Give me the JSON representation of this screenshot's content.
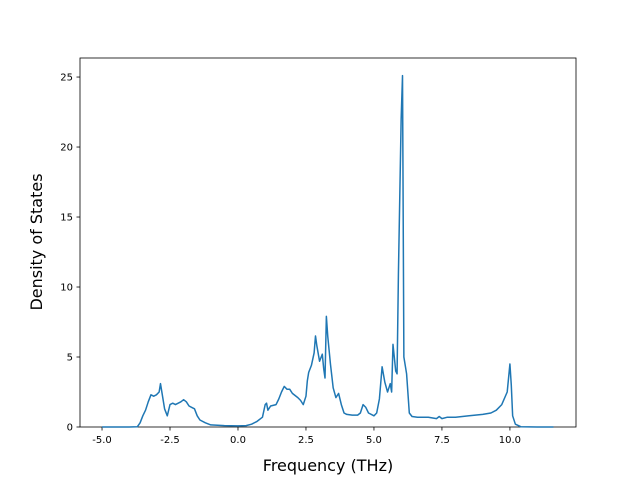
{
  "chart_data": {
    "type": "line",
    "xlabel": "Frequency (THz)",
    "ylabel": "Density of States",
    "xlim": [
      -5.81,
      12.43
    ],
    "ylim": [
      0,
      26.36
    ],
    "xticks": [
      {
        "value": -5,
        "label": "-5.0"
      },
      {
        "value": -2.5,
        "label": "-2.5"
      },
      {
        "value": 0,
        "label": "0.0"
      },
      {
        "value": 2.5,
        "label": "2.5"
      },
      {
        "value": 5,
        "label": "5.0"
      },
      {
        "value": 7.5,
        "label": "7.5"
      },
      {
        "value": 10,
        "label": "10.0"
      }
    ],
    "yticks": [
      0,
      5,
      10,
      15,
      20,
      25
    ],
    "series": [
      {
        "color": "#1f77b4",
        "x": [
          -5.0,
          -4.0,
          -3.7,
          -3.6,
          -3.5,
          -3.4,
          -3.3,
          -3.2,
          -3.1,
          -3.0,
          -2.9,
          -2.85,
          -2.8,
          -2.7,
          -2.6,
          -2.5,
          -2.4,
          -2.3,
          -2.2,
          -2.1,
          -2.0,
          -1.9,
          -1.8,
          -1.7,
          -1.6,
          -1.5,
          -1.4,
          -1.2,
          -1.0,
          -0.5,
          0,
          0.3,
          0.5,
          0.7,
          0.9,
          1.0,
          1.05,
          1.1,
          1.2,
          1.4,
          1.5,
          1.6,
          1.7,
          1.8,
          1.9,
          2.0,
          2.2,
          2.3,
          2.4,
          2.5,
          2.55,
          2.6,
          2.7,
          2.8,
          2.85,
          2.9,
          3.0,
          3.1,
          3.15,
          3.2,
          3.25,
          3.3,
          3.4,
          3.5,
          3.6,
          3.7,
          3.8,
          3.9,
          4.0,
          4.2,
          4.4,
          4.5,
          4.6,
          4.7,
          4.8,
          5.0,
          5.1,
          5.2,
          5.3,
          5.4,
          5.5,
          5.6,
          5.65,
          5.7,
          5.8,
          5.85,
          5.9,
          6.0,
          6.05,
          6.1,
          6.2,
          6.3,
          6.4,
          6.6,
          6.8,
          7.0,
          7.3,
          7.4,
          7.5,
          7.7,
          8.0,
          8.5,
          9.0,
          9.3,
          9.5,
          9.7,
          9.9,
          10.0,
          10.05,
          10.1,
          10.2,
          10.4,
          11.0,
          11.6
        ],
        "values": [
          0,
          0,
          0.02,
          0.3,
          0.8,
          1.2,
          1.8,
          2.3,
          2.2,
          2.3,
          2.5,
          3.1,
          2.5,
          1.3,
          0.8,
          1.6,
          1.7,
          1.6,
          1.7,
          1.8,
          1.95,
          1.8,
          1.5,
          1.4,
          1.3,
          0.8,
          0.5,
          0.3,
          0.15,
          0.1,
          0.08,
          0.1,
          0.2,
          0.4,
          0.7,
          1.6,
          1.7,
          1.2,
          1.5,
          1.6,
          2.0,
          2.5,
          2.9,
          2.7,
          2.7,
          2.4,
          2.1,
          1.9,
          1.6,
          2.2,
          3.3,
          3.9,
          4.4,
          5.3,
          6.5,
          5.8,
          4.7,
          5.2,
          4.2,
          3.5,
          7.9,
          6.5,
          4.5,
          2.8,
          2.1,
          2.4,
          1.6,
          1.0,
          0.9,
          0.85,
          0.85,
          1.0,
          1.6,
          1.4,
          1.0,
          0.8,
          1.0,
          2.0,
          4.3,
          3.2,
          2.5,
          3.1,
          2.5,
          5.9,
          4.0,
          3.8,
          11,
          22,
          25.1,
          5.0,
          3.8,
          1.0,
          0.75,
          0.7,
          0.7,
          0.7,
          0.6,
          0.75,
          0.6,
          0.7,
          0.7,
          0.8,
          0.9,
          1.0,
          1.2,
          1.6,
          2.5,
          4.5,
          3.0,
          0.8,
          0.2,
          0.02,
          0,
          0
        ]
      }
    ]
  }
}
